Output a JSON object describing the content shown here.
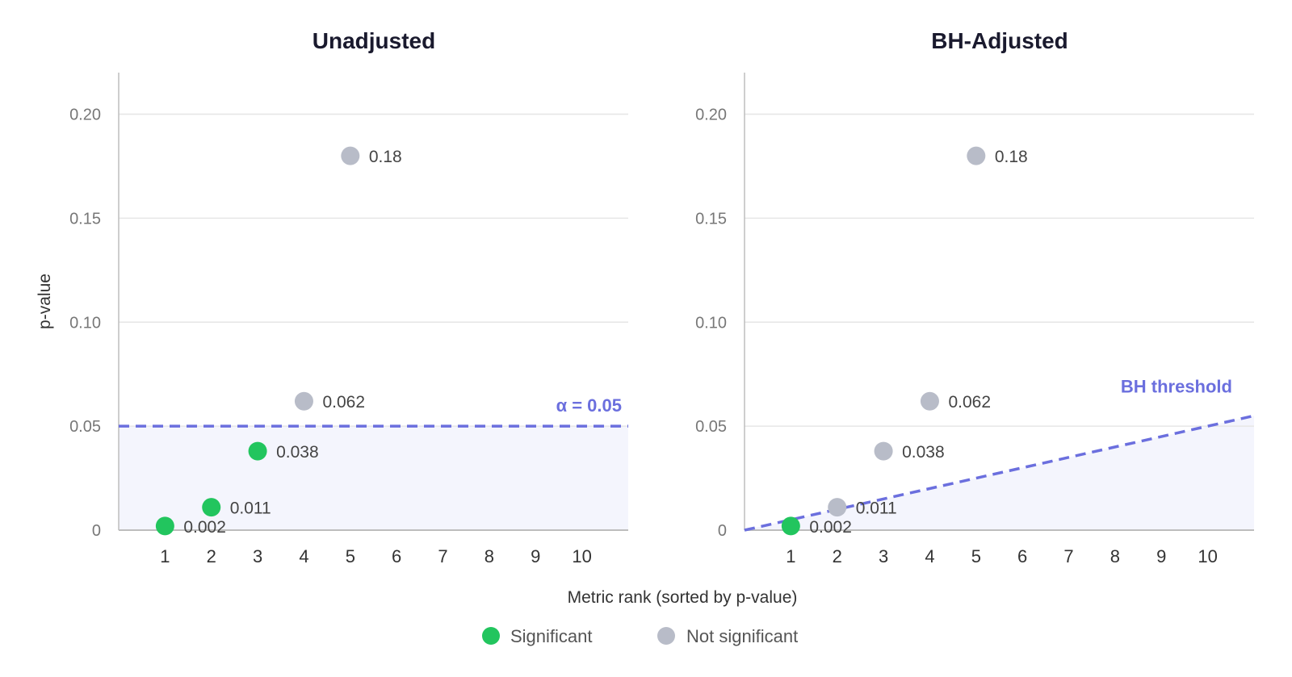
{
  "chart_data": [
    {
      "type": "scatter",
      "title": "Unadjusted",
      "x": [
        1,
        2,
        3,
        4,
        5
      ],
      "y": [
        0.002,
        0.011,
        0.038,
        0.062,
        0.18
      ],
      "point_labels": [
        "0.002",
        "0.011",
        "0.038",
        "0.062",
        "0.18"
      ],
      "significant": [
        true,
        true,
        true,
        false,
        false
      ],
      "x_ticks": [
        "1",
        "2",
        "3",
        "4",
        "5",
        "6",
        "7",
        "8",
        "9",
        "10"
      ],
      "y_ticks": [
        "0",
        "0.05",
        "0.10",
        "0.15",
        "0.20"
      ],
      "xlim": [
        0,
        11
      ],
      "ylim": [
        0,
        0.22
      ],
      "ylabel": "p-value",
      "grid": true,
      "threshold": {
        "kind": "horizontal",
        "value": 0.05,
        "label": "α = 0.05"
      }
    },
    {
      "type": "scatter",
      "title": "BH-Adjusted",
      "x": [
        1,
        2,
        3,
        4,
        5
      ],
      "y": [
        0.002,
        0.011,
        0.038,
        0.062,
        0.18
      ],
      "point_labels": [
        "0.002",
        "0.011",
        "0.038",
        "0.062",
        "0.18"
      ],
      "significant": [
        true,
        false,
        false,
        false,
        false
      ],
      "x_ticks": [
        "1",
        "2",
        "3",
        "4",
        "5",
        "6",
        "7",
        "8",
        "9",
        "10"
      ],
      "y_ticks": [
        "0",
        "0.05",
        "0.10",
        "0.15",
        "0.20"
      ],
      "xlim": [
        0,
        11
      ],
      "ylim": [
        0,
        0.22
      ],
      "grid": true,
      "threshold": {
        "kind": "line",
        "from": [
          0,
          0
        ],
        "to": [
          11,
          0.055
        ],
        "label": "BH threshold"
      }
    }
  ],
  "shared": {
    "xlabel": "Metric rank (sorted by p-value)"
  },
  "legend": {
    "placement": "bottom-center",
    "items": [
      {
        "label": "Significant",
        "color": "#22c55e"
      },
      {
        "label": "Not significant",
        "color": "#b8bcc8"
      }
    ]
  },
  "colors": {
    "significant": "#22c55e",
    "not_significant": "#b8bcc8",
    "threshold": "#6b6fde",
    "shade": "#f4f5fd",
    "grid": "#e6e6e6",
    "axis": "#bdbdbd"
  }
}
